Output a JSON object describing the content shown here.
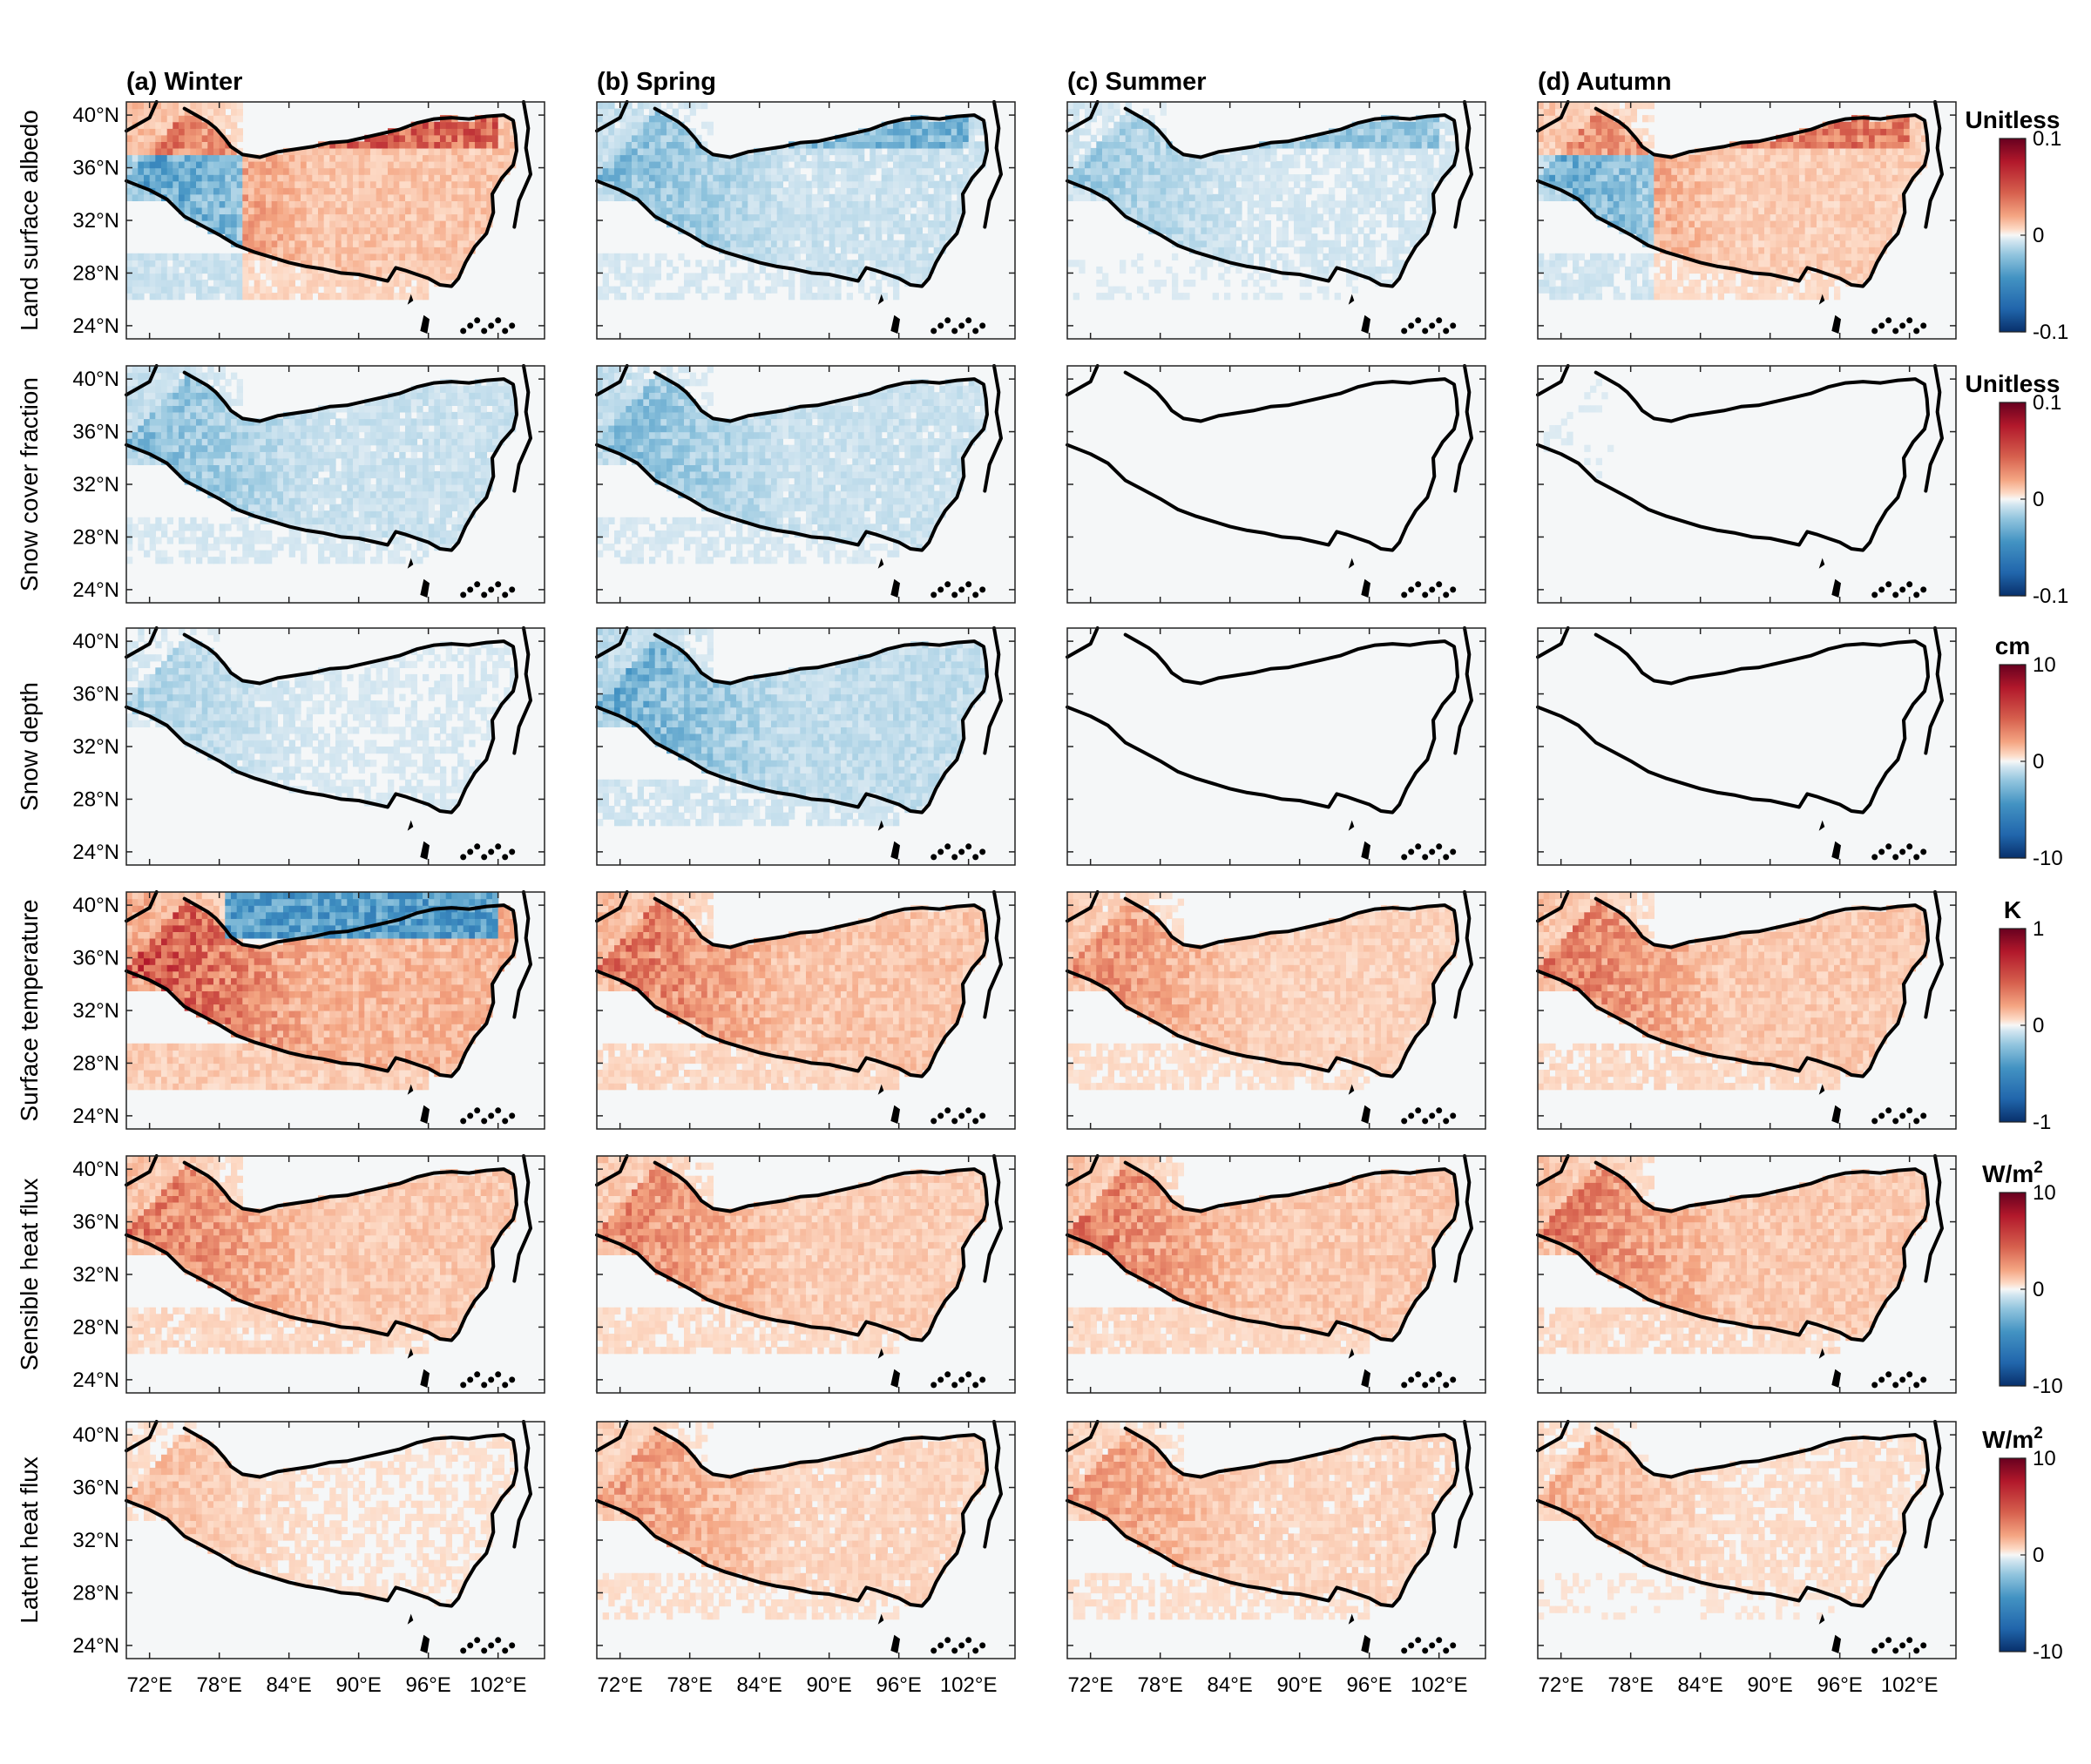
{
  "chart_data": {
    "type": "heatmap",
    "columns": [
      {
        "label": "(a) Winter"
      },
      {
        "label": "(b) Spring"
      },
      {
        "label": "(c) Summer"
      },
      {
        "label": "(d) Autumn"
      }
    ],
    "rows": [
      {
        "label": "Land surface albedo",
        "unit": "Unitless",
        "unit_sup": "",
        "range": [
          -0.1,
          0.1
        ],
        "ticks": [
          "0.1",
          "0",
          "-0.1"
        ],
        "season_intensity": [
          0.55,
          -0.35,
          -0.25,
          0.45
        ]
      },
      {
        "label": "Snow cover fraction",
        "unit": "Unitless",
        "unit_sup": "",
        "range": [
          -0.1,
          0.1
        ],
        "ticks": [
          "0.1",
          "0",
          "-0.1"
        ],
        "season_intensity": [
          -0.35,
          -0.35,
          -0.03,
          -0.05
        ]
      },
      {
        "label": "Snow depth",
        "unit": "cm",
        "unit_sup": "",
        "range": [
          -10,
          10
        ],
        "ticks": [
          "10",
          "0",
          "-10"
        ],
        "season_intensity": [
          -0.2,
          -0.45,
          0.0,
          0.0
        ]
      },
      {
        "label": "Surface temperature",
        "unit": "K",
        "unit_sup": "",
        "range": [
          -1,
          1
        ],
        "ticks": [
          "1",
          "0",
          "-1"
        ],
        "season_intensity": [
          0.75,
          0.55,
          0.4,
          0.5
        ]
      },
      {
        "label": "Sensible heat flux",
        "unit": "W/m",
        "unit_sup": "2",
        "range": [
          -10,
          10
        ],
        "ticks": [
          "10",
          "0",
          "-10"
        ],
        "season_intensity": [
          0.5,
          0.45,
          0.5,
          0.5
        ]
      },
      {
        "label": "Latent heat flux",
        "unit": "W/m",
        "unit_sup": "2",
        "range": [
          -10,
          10
        ],
        "ticks": [
          "10",
          "0",
          "-10"
        ],
        "season_intensity": [
          0.2,
          0.35,
          0.35,
          0.25
        ]
      }
    ],
    "x_ticks": [
      "72°E",
      "78°E",
      "84°E",
      "90°E",
      "96°E",
      "102°E"
    ],
    "x_tick_values": [
      72,
      78,
      84,
      90,
      96,
      102
    ],
    "y_ticks": [
      "40°N",
      "36°N",
      "32°N",
      "28°N",
      "24°N"
    ],
    "y_tick_values": [
      40,
      36,
      32,
      28,
      24
    ],
    "xlim": [
      70,
      106
    ],
    "ylim": [
      23,
      41
    ],
    "colormap": "RdBu_r",
    "colors": {
      "neg_end": "#08306b",
      "mid": "#f7f7f7",
      "pos_end": "#67001f"
    }
  }
}
